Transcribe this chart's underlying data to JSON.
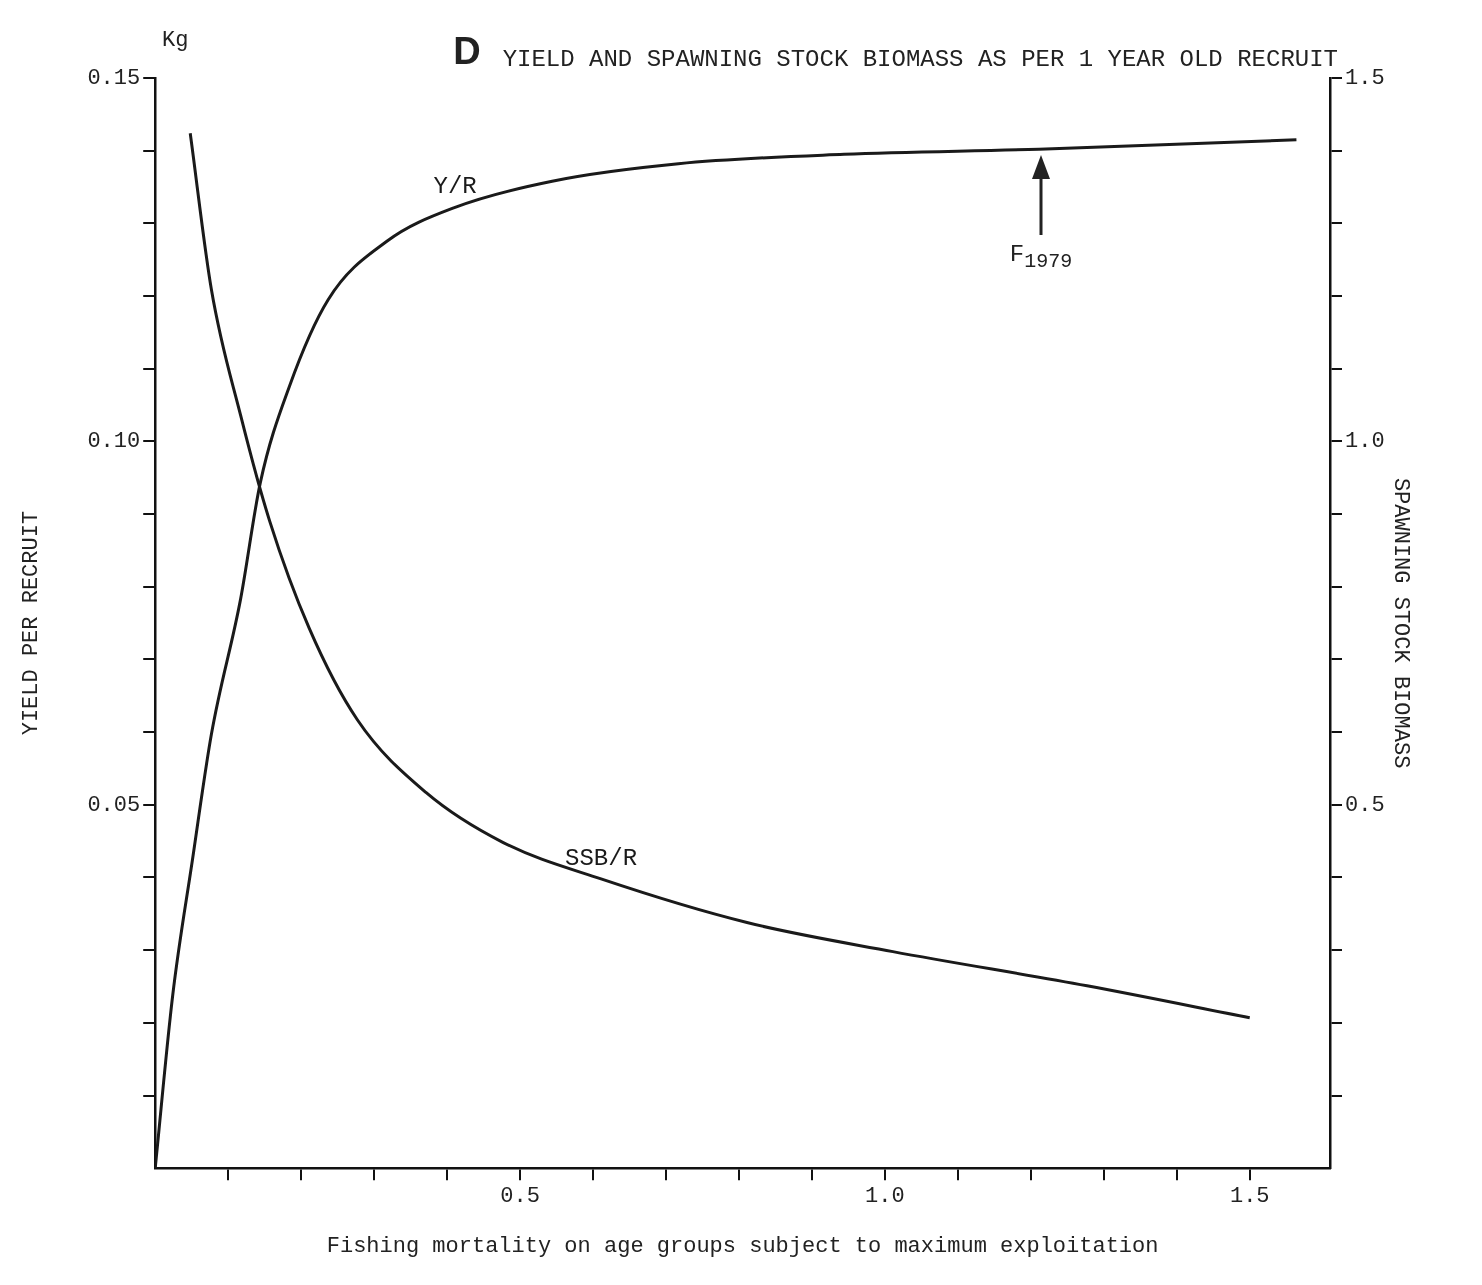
{
  "chart_data": {
    "type": "line",
    "title": "YIELD AND SPAWNING STOCK BIOMASS AS PER 1 YEAR OLD RECRUIT",
    "xlabel": "Fishing mortality on age groups subject to maximum exploitation",
    "ylabel": "YIELD PER RECRUIT",
    "y2label": "SPAWNING STOCK BIOMASS",
    "annotations": [
      "D",
      "Kg",
      "F$_{1979}$"
    ],
    "series": [
      {
        "name": "Y/R",
        "color": "#1a1a1a",
        "x": [
          0,
          0.024,
          0.051,
          0.077,
          0.117,
          0.144,
          0.184,
          0.237,
          0.317,
          0.411,
          0.544,
          0.717,
          0.944,
          1.211,
          1.564
        ],
        "values": [
          0,
          0.0238,
          0.0424,
          0.0597,
          0.0783,
          0.0943,
          0.1076,
          0.1195,
          0.1275,
          0.1322,
          0.1358,
          0.1382,
          0.1395,
          0.1402,
          0.1415
        ]
      },
      {
        "name": "SSB/R",
        "color": "#1a1a1a",
        "axis": "y2",
        "x": [
          0.048,
          0.077,
          0.117,
          0.157,
          0.211,
          0.277,
          0.371,
          0.477,
          0.611,
          0.811,
          1.011,
          1.277,
          1.5
        ],
        "values": [
          1.424,
          1.209,
          1.036,
          0.89,
          0.743,
          0.617,
          0.517,
          0.448,
          0.398,
          0.338,
          0.298,
          0.251,
          0.207
        ]
      }
    ],
    "xlim": [
      0,
      1.61
    ],
    "xticks": [
      {
        "value": 0.1,
        "label": null
      },
      {
        "value": 0.2,
        "label": null
      },
      {
        "value": 0.3,
        "label": null
      },
      {
        "value": 0.4,
        "label": null
      },
      0.5,
      {
        "value": 0.6,
        "label": null
      },
      {
        "value": 0.7,
        "label": null
      },
      {
        "value": 0.8,
        "label": null
      },
      {
        "value": 0.9,
        "label": null
      },
      {
        "value": 1,
        "label": "1.0"
      },
      {
        "value": 1.1,
        "label": null
      },
      {
        "value": 1.2,
        "label": null
      },
      {
        "value": 1.3,
        "label": null
      },
      {
        "value": 1.4,
        "label": null
      },
      1.5
    ],
    "ylim": [
      0,
      0.15
    ],
    "yticks": [
      {
        "value": 0.01,
        "label": null
      },
      {
        "value": 0.02,
        "label": null
      },
      {
        "value": 0.03,
        "label": null
      },
      {
        "value": 0.04,
        "label": null
      },
      {
        "value": 0.05,
        "label": "0.05"
      },
      {
        "value": 0.06,
        "label": null
      },
      {
        "value": 0.07,
        "label": null
      },
      {
        "value": 0.08,
        "label": null
      },
      {
        "value": 0.09,
        "label": null
      },
      {
        "value": 0.1,
        "label": "0.10"
      },
      {
        "value": 0.11,
        "label": null
      },
      {
        "value": 0.12,
        "label": null
      },
      {
        "value": 0.13,
        "label": null
      },
      {
        "value": 0.14,
        "label": null
      },
      {
        "value": 0.15,
        "label": "0.15"
      }
    ],
    "y2lim": [
      0,
      1.5
    ],
    "y2ticks": [
      {
        "value": 0.1,
        "label": null
      },
      {
        "value": 0.2,
        "label": null
      },
      {
        "value": 0.3,
        "label": null
      },
      {
        "value": 0.4,
        "label": null
      },
      0.5,
      {
        "value": 0.6,
        "label": null
      },
      {
        "value": 0.7,
        "label": null
      },
      {
        "value": 0.8,
        "label": null
      },
      {
        "value": 0.9,
        "label": null
      },
      {
        "value": 1,
        "label": "1.0"
      },
      {
        "value": 1.1,
        "label": null
      },
      {
        "value": 1.2,
        "label": null
      },
      {
        "value": 1.3,
        "label": null
      },
      {
        "value": 1.4,
        "label": null
      },
      1.5
    ],
    "grid": false,
    "legend": false,
    "marker": "none",
    "line_style": "solid"
  }
}
